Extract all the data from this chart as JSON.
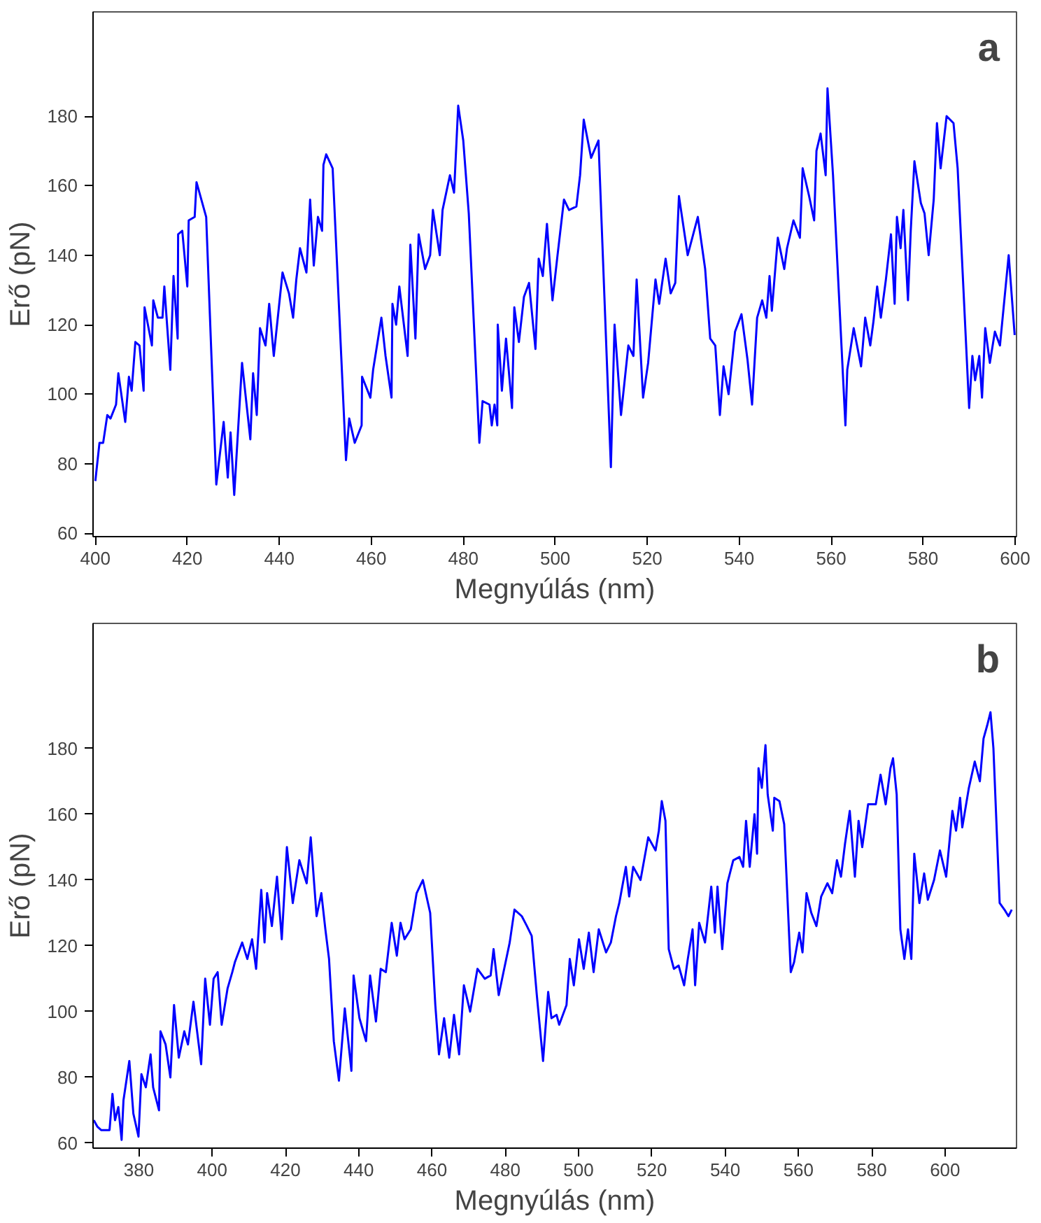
{
  "chart_data": [
    {
      "type": "line",
      "xlabel": "Megnyúlás (nm)",
      "ylabel": "Erő (pN)",
      "annotations": [
        "a"
      ],
      "xlim": [
        399.5,
        600.3
      ],
      "ylim": [
        59,
        210
      ],
      "xticks": [
        400,
        420,
        440,
        460,
        480,
        500,
        520,
        540,
        560,
        580,
        600
      ],
      "yticks": [
        60,
        80,
        100,
        120,
        140,
        160,
        180
      ],
      "grid": false,
      "marker": "none",
      "line_style": "solid",
      "series": [
        {
          "color": "#0000ff",
          "x": [
            400,
            400.9,
            401.7,
            402.6,
            403.3,
            404.5,
            405,
            406.5,
            407.3,
            407.9,
            408.7,
            409.6,
            410.5,
            410.7,
            412.3,
            412.6,
            413.6,
            414.6,
            415,
            416.3,
            417,
            417.9,
            418,
            418.9,
            420,
            420.3,
            421.6,
            422,
            424.1,
            426.3,
            427.9,
            428.8,
            429.4,
            430.2,
            431.9,
            433.7,
            434.3,
            435.1,
            435.8,
            437,
            437.8,
            438.8,
            440.7,
            442.1,
            443,
            443.7,
            444.5,
            445.9,
            446.7,
            447.5,
            448.4,
            449.3,
            449.6,
            450.2,
            451.6,
            454.5,
            455.2,
            456.4,
            457.9,
            458,
            459.8,
            460.4,
            462.2,
            463.1,
            464.4,
            464.6,
            465.4,
            466.1,
            467.9,
            468.5,
            469.6,
            470.3,
            471.7,
            472.8,
            473.4,
            474.9,
            475.5,
            477.1,
            478,
            478.9,
            480,
            481.2,
            483.5,
            484.2,
            485.7,
            486.2,
            486.8,
            487.4,
            487.5,
            488.4,
            489.3,
            490.6,
            491.1,
            492.1,
            493.2,
            494.3,
            495.7,
            496.4,
            497.3,
            498.2,
            499.4,
            500.5,
            501.9,
            503,
            504.6,
            505.4,
            506.2,
            507.8,
            509.4,
            512.1,
            512.9,
            514.3,
            515.9,
            517,
            517.7,
            519.1,
            520.2,
            521.8,
            522.6,
            524,
            525.1,
            526.1,
            526.9,
            528.8,
            531,
            532.6,
            533.7,
            534.8,
            535.8,
            536.6,
            537.7,
            539.1,
            540.5,
            541.8,
            542.8,
            543.9,
            545,
            545.9,
            546.6,
            547.1,
            548.4,
            549.8,
            550.4,
            551.8,
            553.2,
            553.8,
            555.2,
            556.3,
            556.8,
            557.7,
            558.8,
            559.2,
            560.4,
            563.1,
            563.5,
            564.9,
            566.5,
            567.4,
            568.5,
            569.2,
            570,
            570.8,
            571.9,
            573,
            573.8,
            574.3,
            575.1,
            575.7,
            576.7,
            577.3,
            578.1,
            579.5,
            580.3,
            581.2,
            582.3,
            583,
            583.8,
            585.1,
            586.6,
            587.5,
            590,
            590.7,
            591.3,
            592.2,
            592.8,
            593.5,
            594.5,
            595.6,
            596.7,
            598.6,
            599.9
          ],
          "values": [
            75,
            86,
            86,
            94,
            93,
            97,
            106,
            92,
            105,
            101,
            115,
            114,
            101,
            125,
            114,
            127,
            122,
            122,
            131,
            107,
            134,
            116,
            146,
            147,
            131,
            150,
            151,
            161,
            151,
            74,
            92,
            76,
            89,
            71,
            109,
            87,
            106,
            94,
            119,
            114,
            126,
            111,
            135,
            129,
            122,
            133,
            142,
            135,
            156,
            137,
            151,
            147,
            166,
            169,
            165,
            81,
            93,
            86,
            91,
            105,
            99,
            107,
            122,
            111,
            99,
            126,
            120,
            131,
            111,
            143,
            116,
            146,
            136,
            140,
            153,
            140,
            153,
            163,
            158,
            183,
            173,
            152,
            86,
            98,
            97,
            91,
            97,
            91,
            120,
            101,
            116,
            96,
            125,
            115,
            128,
            132,
            113,
            139,
            134,
            149,
            127,
            140,
            156,
            153,
            154,
            163,
            179,
            168,
            173,
            79,
            120,
            94,
            114,
            111,
            133,
            99,
            109,
            133,
            126,
            139,
            129,
            132,
            157,
            140,
            151,
            136,
            116,
            114,
            94,
            108,
            100,
            118,
            123,
            110,
            97,
            122,
            127,
            122,
            134,
            124,
            145,
            136,
            142,
            150,
            145,
            165,
            157,
            150,
            170,
            175,
            163,
            188,
            163,
            91,
            107,
            119,
            108,
            122,
            114,
            121,
            131,
            122,
            133,
            146,
            126,
            151,
            142,
            153,
            127,
            147,
            167,
            155,
            152,
            140,
            156,
            178,
            165,
            180,
            178,
            165,
            96,
            111,
            104,
            111,
            99,
            119,
            109,
            118,
            114,
            140,
            117
          ]
        }
      ]
    },
    {
      "type": "line",
      "xlabel": "Megnyúlás (nm)",
      "ylabel": "Erő (pN)",
      "annotations": [
        "b"
      ],
      "xlim": [
        367.5,
        619.5
      ],
      "ylim": [
        58.5,
        218
      ],
      "xticks": [
        380,
        400,
        420,
        440,
        460,
        480,
        500,
        520,
        540,
        560,
        580,
        600
      ],
      "yticks": [
        60,
        80,
        100,
        120,
        140,
        160,
        180
      ],
      "grid": false,
      "marker": "none",
      "line_style": "solid",
      "series": [
        {
          "color": "#0000ff",
          "x": [
            367.7,
            368.7,
            369.7,
            371.1,
            372,
            372.8,
            373.5,
            374.4,
            375.3,
            375.8,
            377.4,
            378.5,
            379.9,
            380.7,
            381.9,
            383.2,
            383.9,
            385.5,
            385.9,
            387.3,
            388.6,
            389.6,
            390.9,
            392.4,
            393.4,
            394.9,
            397,
            398.1,
            399.4,
            400.4,
            401.5,
            402.6,
            404.2,
            405.5,
            406.2,
            408.2,
            409.6,
            410.9,
            412,
            413.4,
            414.3,
            415,
            416.3,
            417.7,
            419,
            420.4,
            422,
            423.8,
            425.8,
            426.9,
            428.5,
            429.8,
            430.9,
            431.9,
            433.2,
            434.6,
            436.2,
            438,
            438.6,
            440.2,
            442,
            443.1,
            444.7,
            446,
            447.4,
            449,
            450.4,
            451.4,
            452.5,
            454.2,
            455.8,
            457.5,
            459.5,
            460.9,
            461.9,
            463.3,
            464.7,
            466,
            467.4,
            468.7,
            470.4,
            472.4,
            474.4,
            476,
            476.8,
            478.2,
            479.5,
            481.2,
            482.5,
            484.5,
            485.9,
            487.2,
            488.6,
            490.3,
            491.7,
            492.6,
            494,
            494.7,
            496.7,
            497.6,
            498.7,
            500.1,
            501.4,
            502.8,
            504.1,
            505.5,
            507.5,
            508.8,
            510.2,
            511.1,
            512.9,
            513.8,
            514.9,
            516.9,
            519,
            521,
            521.9,
            522.7,
            523.7,
            524.6,
            526,
            527.3,
            528.8,
            529.8,
            531.1,
            531.8,
            532.9,
            534.5,
            536.2,
            537.2,
            537.9,
            539.2,
            540.6,
            542.2,
            543.9,
            544.9,
            545.7,
            546.7,
            548,
            548.7,
            549.1,
            550,
            551,
            551.6,
            553,
            553.4,
            554.8,
            556.1,
            557.9,
            558.8,
            560.2,
            561.1,
            562.2,
            563.5,
            564.9,
            566.2,
            567.9,
            569.2,
            570.5,
            571.6,
            572.7,
            574,
            575.4,
            576.4,
            577.4,
            579,
            581.1,
            582.4,
            583.8,
            585.1,
            585.8,
            586.8,
            587.8,
            588.9,
            589.9,
            590.8,
            591.6,
            593,
            594.3,
            595.3,
            597,
            598.6,
            600.3,
            602,
            603,
            604.1,
            604.7,
            606.5,
            608.1,
            609.5,
            610.5,
            611.5,
            612.4,
            613.2,
            614.9,
            616.2,
            617.3,
            618.2
          ],
          "values": [
            67,
            65,
            64,
            64,
            64,
            75,
            67,
            71,
            61,
            73,
            85,
            69,
            62,
            81,
            77,
            87,
            77,
            70,
            94,
            90,
            80,
            102,
            86,
            94,
            90,
            103,
            84,
            110,
            96,
            110,
            112,
            96,
            107,
            112,
            115,
            121,
            116,
            122,
            113,
            137,
            121,
            136,
            126,
            141,
            122,
            150,
            133,
            146,
            139,
            153,
            129,
            136,
            125,
            116,
            91,
            79,
            101,
            82,
            111,
            98,
            91,
            111,
            97,
            113,
            112,
            127,
            117,
            127,
            122,
            125,
            136,
            140,
            130,
            102,
            87,
            98,
            86,
            99,
            87,
            108,
            100,
            113,
            110,
            111,
            119,
            105,
            112,
            121,
            131,
            129,
            126,
            123,
            105,
            85,
            106,
            98,
            99,
            96,
            102,
            116,
            108,
            122,
            113,
            124,
            112,
            125,
            118,
            121,
            129,
            133,
            144,
            135,
            144,
            140,
            153,
            149,
            155,
            164,
            158,
            119,
            113,
            114,
            108,
            116,
            125,
            108,
            127,
            121,
            138,
            124,
            138,
            119,
            139,
            146,
            147,
            144,
            158,
            144,
            160,
            148,
            174,
            168,
            181,
            166,
            155,
            165,
            164,
            157,
            112,
            115,
            124,
            118,
            136,
            130,
            126,
            135,
            139,
            136,
            146,
            141,
            151,
            161,
            141,
            158,
            150,
            163,
            163,
            172,
            163,
            174,
            177,
            166,
            125,
            116,
            125,
            116,
            148,
            133,
            142,
            134,
            140,
            149,
            141,
            161,
            155,
            165,
            156,
            168,
            176,
            170,
            183,
            187,
            191,
            180,
            133,
            131,
            129,
            131
          ]
        }
      ]
    }
  ]
}
